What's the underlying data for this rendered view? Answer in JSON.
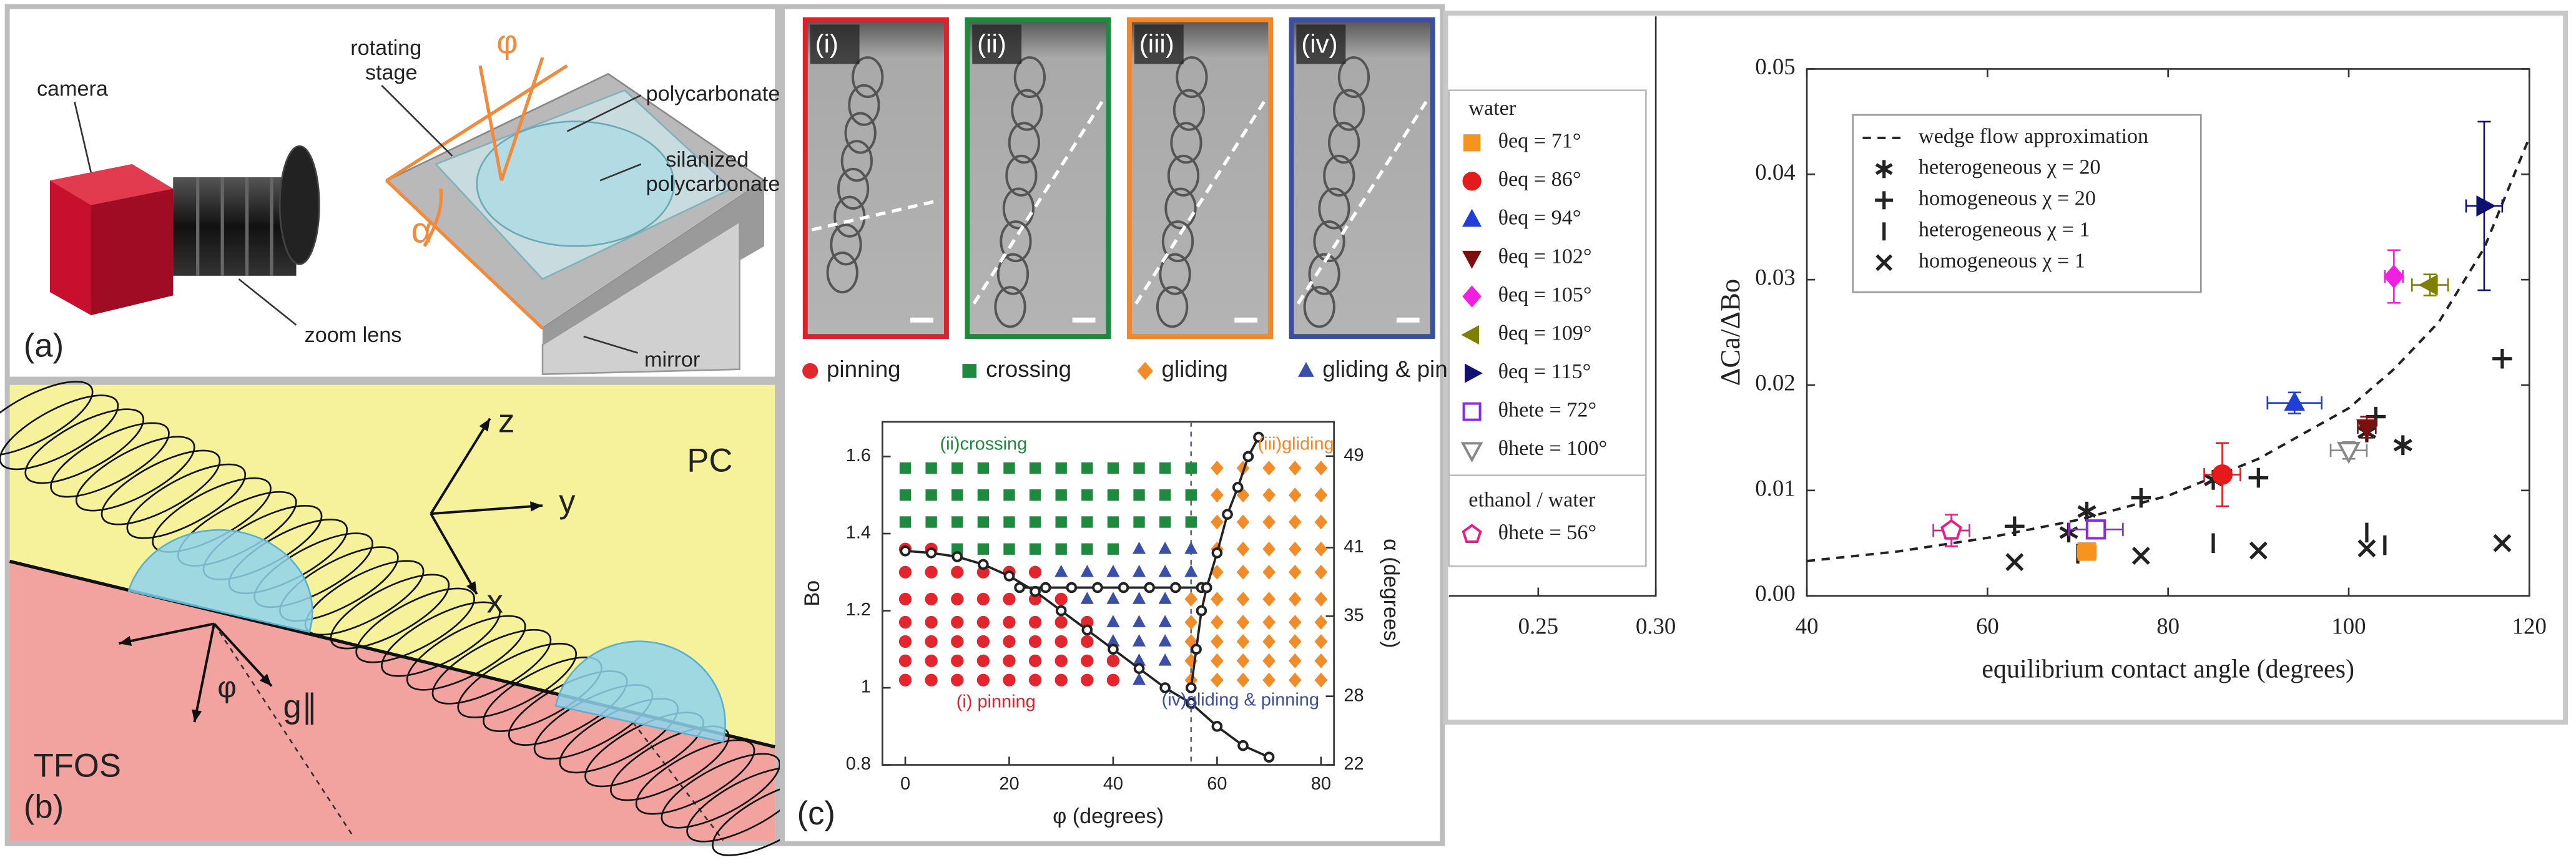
{
  "panel_a": {
    "label": "(a)",
    "camera": "camera",
    "rotating_stage": [
      "rotating",
      "stage"
    ],
    "polycarbonate": "polycarbonate",
    "silanized_polycarbonate": [
      "silanized",
      "polycarbonate"
    ],
    "zoom_lens": "zoom lens",
    "mirror": "mirror",
    "phi": "φ",
    "alpha": "α"
  },
  "panel_b": {
    "label": "(b)",
    "z": "z",
    "y": "y",
    "x": "x",
    "pc": "PC",
    "tfos": "TFOS",
    "phi": "φ",
    "g": "g∥"
  },
  "photos": {
    "labels": [
      "(i)",
      "(ii)",
      "(iii)",
      "(iv)"
    ],
    "colors": [
      "#d9232d",
      "#1e8a3e",
      "#f0872a",
      "#3b4fa0"
    ]
  },
  "chart_data": [
    {
      "type": "scatter",
      "panel_label": "(c)",
      "xlabel": "φ (degrees)",
      "ylabel": "Bo",
      "y2label": "α (degrees)",
      "xlim": [
        -4.4,
        82.5
      ],
      "xticks": [
        0,
        20,
        40,
        60,
        80
      ],
      "ylim": [
        0.8,
        1.69
      ],
      "yticks": [
        0.8,
        1.0,
        1.2,
        1.4,
        1.6
      ],
      "y2lim": [
        22,
        52
      ],
      "y2ticks": [
        22,
        28,
        35,
        41,
        49
      ],
      "vline": 55,
      "annotations": [
        {
          "text": "(ii)crossing",
          "color": "#1e8a3e"
        },
        {
          "text": "(iii)gliding",
          "color": "#f0872a"
        },
        {
          "text": "(i) pinning",
          "color": "#d9232d"
        },
        {
          "text": "(iv)gliding & pinning",
          "color": "#3b4fa0"
        }
      ],
      "series": [
        {
          "name": "pinning",
          "color": "#e3262e",
          "marker": "circle",
          "filled": true,
          "x": [
            0,
            5,
            0,
            5,
            10,
            15,
            20,
            25,
            0,
            5,
            10,
            15,
            20,
            25,
            30,
            0,
            5,
            10,
            15,
            20,
            25,
            30,
            35,
            0,
            5,
            10,
            15,
            20,
            25,
            30,
            35,
            0,
            5,
            10,
            15,
            20,
            25,
            30,
            35,
            40,
            0,
            5,
            10,
            15,
            20,
            25,
            30,
            35,
            40
          ],
          "values": [
            1.36,
            1.36,
            1.3,
            1.3,
            1.3,
            1.3,
            1.3,
            1.3,
            1.23,
            1.23,
            1.23,
            1.23,
            1.23,
            1.23,
            1.23,
            1.17,
            1.17,
            1.17,
            1.17,
            1.17,
            1.17,
            1.17,
            1.17,
            1.12,
            1.12,
            1.12,
            1.12,
            1.12,
            1.12,
            1.12,
            1.12,
            1.07,
            1.07,
            1.07,
            1.07,
            1.07,
            1.07,
            1.07,
            1.07,
            1.07,
            1.02,
            1.02,
            1.02,
            1.02,
            1.02,
            1.02,
            1.02,
            1.02,
            1.02
          ]
        },
        {
          "name": "crossing",
          "color": "#1e8a3e",
          "marker": "square",
          "filled": true,
          "x": [
            0,
            5,
            10,
            15,
            20,
            25,
            30,
            35,
            40,
            45,
            50,
            55,
            0,
            5,
            10,
            15,
            20,
            25,
            30,
            35,
            40,
            45,
            50,
            55,
            0,
            5,
            10,
            15,
            20,
            25,
            30,
            35,
            40,
            45,
            50,
            55,
            10,
            15,
            20,
            25,
            30,
            35,
            40
          ],
          "values": [
            1.57,
            1.57,
            1.57,
            1.57,
            1.57,
            1.57,
            1.57,
            1.57,
            1.57,
            1.57,
            1.57,
            1.57,
            1.5,
            1.5,
            1.5,
            1.5,
            1.5,
            1.5,
            1.5,
            1.5,
            1.5,
            1.5,
            1.5,
            1.5,
            1.43,
            1.43,
            1.43,
            1.43,
            1.43,
            1.43,
            1.43,
            1.43,
            1.43,
            1.43,
            1.43,
            1.43,
            1.36,
            1.36,
            1.36,
            1.36,
            1.36,
            1.36,
            1.36
          ]
        },
        {
          "name": "gliding",
          "color": "#f28c28",
          "marker": "diamond",
          "filled": true,
          "x": [
            60,
            65,
            70,
            75,
            80,
            60,
            65,
            70,
            75,
            80,
            60,
            65,
            70,
            75,
            80,
            60,
            65,
            70,
            75,
            80,
            60,
            65,
            70,
            75,
            80,
            55,
            60,
            65,
            70,
            75,
            80,
            55,
            60,
            65,
            70,
            75,
            80,
            55,
            60,
            65,
            70,
            75,
            80,
            55,
            60,
            65,
            70,
            75,
            80,
            55,
            60,
            65,
            70,
            75,
            80
          ],
          "values": [
            1.57,
            1.57,
            1.57,
            1.57,
            1.57,
            1.5,
            1.5,
            1.5,
            1.5,
            1.5,
            1.43,
            1.43,
            1.43,
            1.43,
            1.43,
            1.36,
            1.36,
            1.36,
            1.36,
            1.36,
            1.3,
            1.3,
            1.3,
            1.3,
            1.3,
            1.23,
            1.23,
            1.23,
            1.23,
            1.23,
            1.23,
            1.17,
            1.17,
            1.17,
            1.17,
            1.17,
            1.17,
            1.12,
            1.12,
            1.12,
            1.12,
            1.12,
            1.12,
            1.07,
            1.07,
            1.07,
            1.07,
            1.07,
            1.07,
            1.02,
            1.02,
            1.02,
            1.02,
            1.02,
            1.02
          ]
        },
        {
          "name": "gliding & pinning",
          "color": "#3a4fa8",
          "marker": "triangle",
          "filled": true,
          "x": [
            45,
            50,
            55,
            30,
            35,
            40,
            45,
            50,
            55,
            35,
            40,
            45,
            50,
            40,
            45,
            50,
            40,
            45,
            50,
            45,
            50,
            45
          ],
          "values": [
            1.36,
            1.36,
            1.36,
            1.3,
            1.3,
            1.3,
            1.3,
            1.3,
            1.3,
            1.23,
            1.23,
            1.23,
            1.23,
            1.17,
            1.17,
            1.17,
            1.12,
            1.12,
            1.12,
            1.07,
            1.07,
            1.02
          ]
        },
        {
          "color": "#222222",
          "marker": "circle",
          "filled": false,
          "line": true,
          "x": [
            0,
            5,
            10,
            15,
            20,
            25,
            30,
            35,
            40,
            45,
            50,
            55,
            60,
            65,
            70
          ],
          "values": [
            1.355,
            1.35,
            1.34,
            1.32,
            1.29,
            1.25,
            1.2,
            1.15,
            1.1,
            1.05,
            1.0,
            0.96,
            0.9,
            0.85,
            0.82
          ]
        },
        {
          "color": "#222222",
          "marker": "circle",
          "filled": false,
          "line": true,
          "x": [
            22,
            27,
            32,
            37,
            42,
            47,
            52,
            57
          ],
          "values": [
            1.26,
            1.26,
            1.26,
            1.26,
            1.26,
            1.26,
            1.26,
            1.26
          ]
        },
        {
          "color": "#222222",
          "marker": "circle",
          "filled": false,
          "line": true,
          "x": [
            55,
            56,
            57,
            58,
            60,
            62,
            64,
            66,
            68
          ],
          "values": [
            1.0,
            1.1,
            1.2,
            1.26,
            1.35,
            1.45,
            1.52,
            1.6,
            1.65
          ]
        }
      ]
    },
    {
      "type": "scatter",
      "xlabel": "equilibrium contact angle (degrees)",
      "ylabel": "ΔCa/ΔBo",
      "xlim": [
        40,
        120
      ],
      "xticks": [
        40,
        60,
        80,
        100,
        120
      ],
      "ylim": [
        0,
        0.05
      ],
      "yticks": [
        {
          "value": 0,
          "label": "0.00"
        },
        0.01,
        0.02,
        0.03,
        0.04,
        0.05
      ],
      "groups": [
        {
          "title": "water",
          "series": [
            {
              "name": "θeq = 71°",
              "color": "#f7941d",
              "marker": "square",
              "filled": true,
              "x": [
                71
              ],
              "values": [
                0.0042
              ],
              "xerr": [
                1
              ],
              "yerr": [
                0.0006
              ]
            },
            {
              "name": "θeq = 86°",
              "color": "#e41a1c",
              "marker": "circle",
              "filled": true,
              "x": [
                86
              ],
              "values": [
                0.0115
              ],
              "xerr": [
                2
              ],
              "yerr": [
                0.003
              ]
            },
            {
              "name": "θeq = 94°",
              "color": "#1f3fd6",
              "marker": "triangle",
              "filled": true,
              "x": [
                94
              ],
              "values": [
                0.0183
              ],
              "xerr": [
                3
              ],
              "yerr": [
                0.001
              ]
            },
            {
              "name": "θeq = 102°",
              "color": "#7a1010",
              "marker": "triangle-down",
              "filled": true,
              "x": [
                102
              ],
              "values": [
                0.016
              ],
              "xerr": [
                1
              ],
              "yerr": [
                0.001
              ]
            },
            {
              "name": "θeq = 105°",
              "color": "#f020e0",
              "marker": "diamond",
              "filled": true,
              "x": [
                105
              ],
              "values": [
                0.0303
              ],
              "xerr": [
                1
              ],
              "yerr": [
                0.0025
              ]
            },
            {
              "name": "θeq = 109°",
              "color": "#808000",
              "marker": "triangle-left",
              "filled": true,
              "x": [
                109
              ],
              "values": [
                0.0295
              ],
              "xerr": [
                2
              ],
              "yerr": [
                0.001
              ]
            },
            {
              "name": "θeq = 115°",
              "color": "#10106e",
              "marker": "triangle-right",
              "filled": true,
              "x": [
                115
              ],
              "values": [
                0.037
              ],
              "xerr": [
                2
              ],
              "yerr": [
                0.008
              ]
            },
            {
              "name": "θhete = 72°",
              "color": "#8a2be2",
              "marker": "square",
              "filled": false,
              "x": [
                72
              ],
              "values": [
                0.0063
              ],
              "xerr": [
                3
              ],
              "yerr": [
                0.0008
              ]
            },
            {
              "name": "θhete = 100°",
              "color": "#888888",
              "marker": "triangle-down",
              "filled": false,
              "x": [
                100
              ],
              "values": [
                0.0138
              ],
              "xerr": [
                2
              ],
              "yerr": [
                0.0008
              ]
            }
          ]
        },
        {
          "title": "ethanol / water",
          "series": [
            {
              "name": "θhete = 56°",
              "color": "#e0208a",
              "marker": "pentagon",
              "filled": false,
              "x": [
                56
              ],
              "values": [
                0.0062
              ],
              "xerr": [
                2
              ],
              "yerr": [
                0.0015
              ]
            }
          ]
        }
      ],
      "series": [
        {
          "name": "wedge flow approximation",
          "color": "#222222",
          "marker": "none",
          "style": "dashed",
          "x": [
            40,
            50,
            60,
            70,
            80,
            90,
            100,
            105,
            110,
            115,
            120
          ],
          "values": [
            0.0033,
            0.0042,
            0.0055,
            0.0072,
            0.0095,
            0.013,
            0.0178,
            0.0215,
            0.026,
            0.033,
            0.0435
          ]
        },
        {
          "name": "heterogeneous χ = 20",
          "color": "#222222",
          "marker": "asterisk",
          "x": [
            69,
            71,
            85,
            102,
            106
          ],
          "values": [
            0.006,
            0.008,
            0.011,
            0.0155,
            0.0143
          ]
        },
        {
          "name": "homogeneous χ = 20",
          "color": "#222222",
          "marker": "plus",
          "x": [
            63,
            77,
            90,
            103,
            117
          ],
          "values": [
            0.0066,
            0.0093,
            0.0112,
            0.017,
            0.0225
          ]
        },
        {
          "name": "heterogeneous χ = 1",
          "color": "#222222",
          "marker": "vbar",
          "x": [
            70,
            85,
            102,
            104
          ],
          "values": [
            0.004,
            0.005,
            0.006,
            0.0048
          ]
        },
        {
          "name": "homogeneous χ = 1",
          "color": "#222222",
          "marker": "x",
          "x": [
            63,
            77,
            90,
            102,
            117
          ],
          "values": [
            0.0032,
            0.0038,
            0.0043,
            0.0045,
            0.005
          ]
        }
      ]
    },
    {
      "type": "axis",
      "xlim": [
        0.212,
        0.3
      ],
      "xticks": [
        0.25,
        {
          "value": 0.3,
          "label": "0.30"
        }
      ]
    }
  ]
}
